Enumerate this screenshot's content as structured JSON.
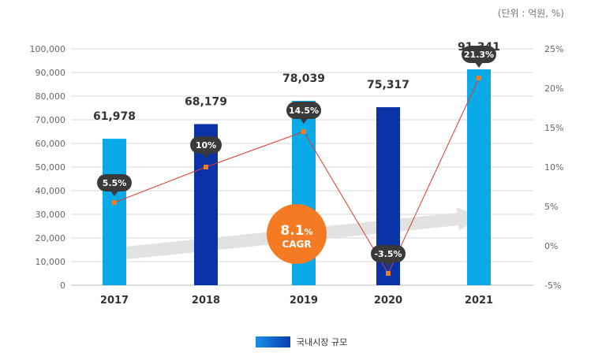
{
  "chart_data": {
    "type": "bar",
    "unit_label": "(단위 : 억원, %)",
    "categories": [
      "2017",
      "2018",
      "2019",
      "2020",
      "2021"
    ],
    "series": [
      {
        "name": "국내시장 규모",
        "values": [
          61978,
          68179,
          78039,
          75317,
          91341
        ],
        "value_labels": [
          "61,978",
          "68,179",
          "78,039",
          "75,317",
          "91,341"
        ]
      }
    ],
    "growth": {
      "values": [
        5.5,
        10,
        14.5,
        -3.5,
        21.3
      ],
      "labels": [
        "5.5%",
        "10%",
        "14.5%",
        "-3.5%",
        "21.3%"
      ]
    },
    "left_axis": {
      "min": 0,
      "max": 100000,
      "ticks": [
        "0",
        "10,000",
        "20,000",
        "30,000",
        "40,000",
        "50,000",
        "60,000",
        "70,000",
        "80,000",
        "90,000",
        "100,000"
      ]
    },
    "right_axis": {
      "min": -5,
      "max": 25,
      "ticks": [
        "-5%",
        "0%",
        "5%",
        "10%",
        "15%",
        "20%",
        "25%"
      ]
    },
    "cagr": {
      "value_number": "8.1",
      "value_unit": "%",
      "label": "CAGR"
    },
    "legend": {
      "label": "국내시장 규모"
    },
    "colors": {
      "light_bar": "#0aaae8",
      "dark_bar": "#0a33a8",
      "line": "#e03a2a",
      "marker": "#f07d28",
      "badge": "#3a3a3a",
      "cagr_circle": "#f47b24",
      "arrow": "#e2e2e2",
      "grid": "#d8d8d8"
    }
  }
}
